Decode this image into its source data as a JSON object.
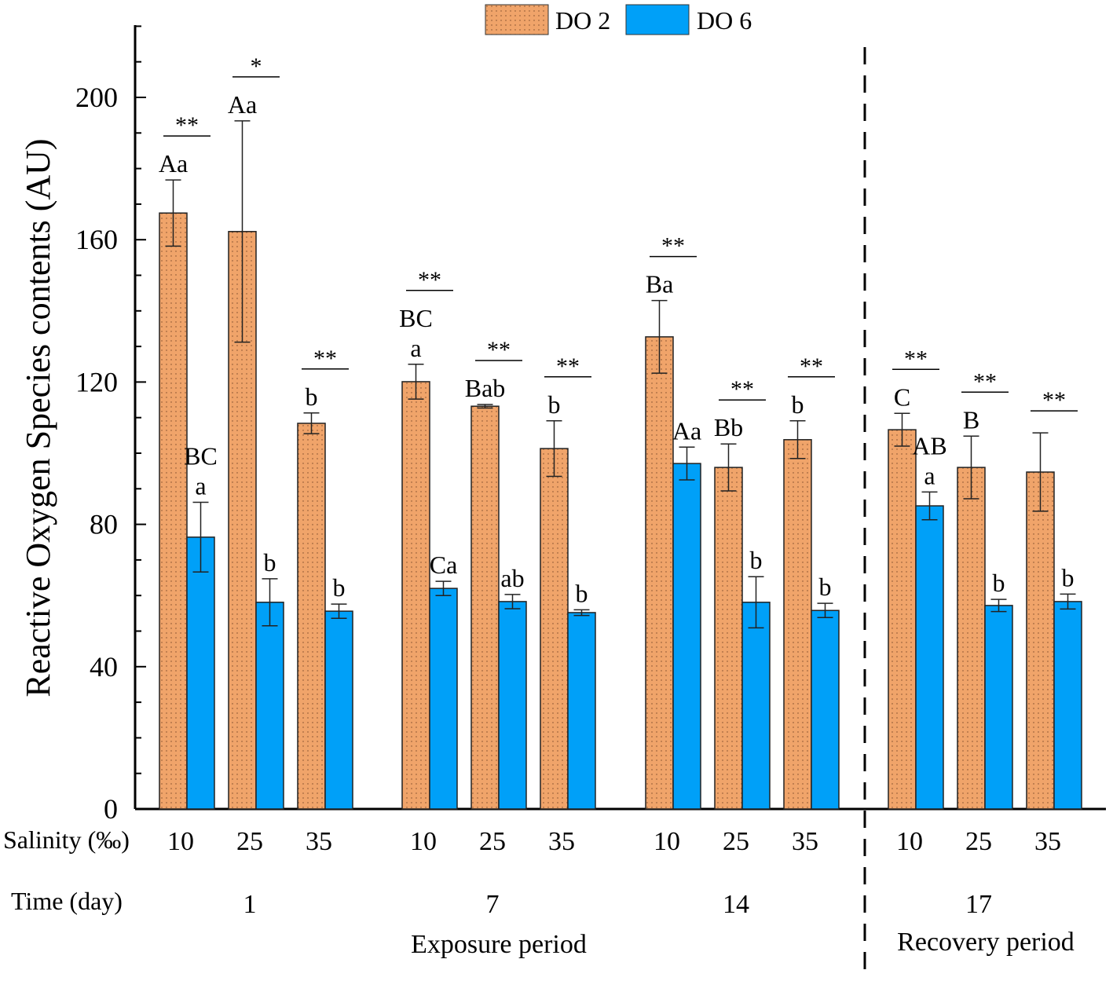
{
  "chart_data": {
    "type": "bar",
    "title": "",
    "ylabel": "Reactive Oxygen Species contents (AU)",
    "ylim": [
      0,
      200
    ],
    "yticks": [
      "0",
      "40",
      "80",
      "120",
      "160",
      "200"
    ],
    "legend": {
      "position": "top-center",
      "entries": [
        "DO 2",
        "DO 6"
      ]
    },
    "colors": {
      "DO 2": "#f0a46a",
      "DO 6": "#00a0f8"
    },
    "row_labels": {
      "salinity": "Salinity (‰)",
      "time": "Time (day)"
    },
    "periods": [
      "Exposure period",
      "Recovery period"
    ],
    "days": [
      "1",
      "7",
      "14",
      "17"
    ],
    "salinities": [
      "10",
      "25",
      "35"
    ],
    "categories": [
      "1-10",
      "1-25",
      "1-35",
      "7-10",
      "7-25",
      "7-35",
      "14-10",
      "14-25",
      "14-35",
      "17-10",
      "17-25",
      "17-35"
    ],
    "series": [
      {
        "name": "DO 2",
        "values": [
          167.5,
          162.3,
          108.4,
          120.1,
          113.2,
          101.3,
          132.7,
          96.0,
          103.8,
          106.6,
          96.0,
          94.7
        ],
        "errors": [
          9.3,
          31.1,
          2.9,
          4.9,
          0.5,
          7.8,
          10.2,
          6.6,
          5.3,
          4.6,
          8.8,
          11.0
        ],
        "letters": [
          [
            "Aa"
          ],
          [
            "Aa"
          ],
          [
            "b"
          ],
          [
            "BC",
            "a"
          ],
          [
            "Bab"
          ],
          [
            "b"
          ],
          [
            "Ba"
          ],
          [
            "Bb"
          ],
          [
            "b"
          ],
          [
            "C"
          ],
          [
            "B"
          ],
          []
        ]
      },
      {
        "name": "DO 6",
        "values": [
          76.4,
          58.1,
          55.6,
          62.0,
          58.3,
          55.2,
          97.1,
          58.1,
          55.8,
          85.2,
          57.2,
          58.3
        ],
        "errors": [
          9.8,
          6.6,
          2.0,
          2.0,
          2.0,
          0.8,
          4.6,
          7.2,
          2.0,
          3.9,
          1.7,
          2.1
        ],
        "letters": [
          [
            "BC",
            "a"
          ],
          [
            "b"
          ],
          [
            "b"
          ],
          [
            "Ca"
          ],
          [
            "ab"
          ],
          [
            "b"
          ],
          [
            "Aa"
          ],
          [
            "b"
          ],
          [
            "b"
          ],
          [
            "AB",
            "a"
          ],
          [
            "b"
          ],
          [
            "b"
          ]
        ]
      }
    ],
    "significance": [
      "**",
      "*",
      "**",
      "**",
      "**",
      "**",
      "**",
      "**",
      "**",
      "**",
      "**",
      "**"
    ]
  }
}
